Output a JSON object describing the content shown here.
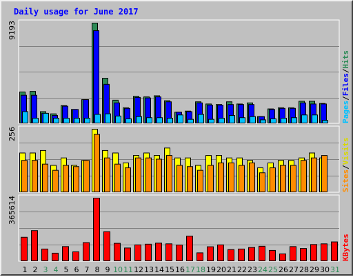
{
  "title": "Daily usage for June 2017",
  "colors": {
    "hits": "#2e8b57",
    "files": "#0000ff",
    "pages": "#00c0ff",
    "visits": "#ffff00",
    "sites": "#ff8c00",
    "kbytes": "#ff0000",
    "title": "#0000ff",
    "weekend_label": "#2e8b57",
    "weekday_label": "#000000",
    "slash": "#000000"
  },
  "chart_data": [
    {
      "type": "bar",
      "panel": "hits-files-pages",
      "max_label": "9193",
      "ylim": [
        0,
        9193
      ],
      "grid": true,
      "side_labels": [
        "Pages",
        "/",
        "Files",
        "/",
        "Hits"
      ],
      "categories": [
        "1",
        "2",
        "3",
        "4",
        "5",
        "6",
        "7",
        "8",
        "9",
        "10",
        "11",
        "12",
        "13",
        "14",
        "15",
        "16",
        "17",
        "18",
        "19",
        "20",
        "21",
        "22",
        "23",
        "24",
        "25",
        "26",
        "27",
        "28",
        "29",
        "30",
        "31"
      ],
      "series": [
        {
          "name": "Hits",
          "values": [
            2900,
            2950,
            1100,
            900,
            1650,
            1300,
            2200,
            9193,
            4150,
            2150,
            1450,
            2500,
            2450,
            2550,
            2100,
            1050,
            1150,
            2000,
            1800,
            1750,
            2000,
            1800,
            1900,
            650,
            1350,
            1450,
            1450,
            2050,
            2050,
            1850,
            0
          ]
        },
        {
          "name": "Files",
          "values": [
            2600,
            2600,
            950,
            750,
            1600,
            1300,
            2200,
            8500,
            3600,
            1900,
            1400,
            2400,
            2350,
            2450,
            2000,
            1050,
            1100,
            1900,
            1700,
            1700,
            1750,
            1750,
            1750,
            650,
            1300,
            1400,
            1400,
            1900,
            1800,
            1800,
            0
          ]
        },
        {
          "name": "Pages",
          "values": [
            1100,
            500,
            950,
            500,
            500,
            500,
            500,
            850,
            900,
            700,
            450,
            650,
            550,
            550,
            500,
            800,
            400,
            850,
            400,
            500,
            750,
            550,
            650,
            350,
            450,
            500,
            550,
            800,
            800,
            300,
            0
          ]
        }
      ]
    },
    {
      "type": "bar",
      "panel": "visits-sites",
      "max_label": "256",
      "ylim": [
        0,
        256
      ],
      "grid": true,
      "side_labels": [
        "Sites",
        "/",
        "Visits"
      ],
      "categories": [
        "1",
        "2",
        "3",
        "4",
        "5",
        "6",
        "7",
        "8",
        "9",
        "10",
        "11",
        "12",
        "13",
        "14",
        "15",
        "16",
        "17",
        "18",
        "19",
        "20",
        "21",
        "22",
        "23",
        "24",
        "25",
        "26",
        "27",
        "28",
        "29",
        "30",
        "31"
      ],
      "series": [
        {
          "name": "Visits",
          "values": [
            160,
            160,
            170,
            110,
            140,
            110,
            130,
            256,
            170,
            160,
            120,
            150,
            160,
            150,
            180,
            140,
            140,
            110,
            150,
            150,
            140,
            140,
            130,
            100,
            120,
            130,
            130,
            140,
            160,
            140,
            0
          ]
        },
        {
          "name": "Sites",
          "values": [
            130,
            130,
            115,
            90,
            110,
            105,
            130,
            235,
            140,
            115,
            100,
            140,
            140,
            135,
            150,
            110,
            105,
            90,
            110,
            120,
            120,
            110,
            120,
            80,
            100,
            110,
            110,
            130,
            140,
            150,
            0
          ]
        }
      ]
    },
    {
      "type": "bar",
      "panel": "kbytes",
      "max_label": "365614",
      "ylim": [
        0,
        365614
      ],
      "grid": true,
      "side_labels": [
        "KBytes"
      ],
      "categories": [
        "1",
        "2",
        "3",
        "4",
        "5",
        "6",
        "7",
        "8",
        "9",
        "10",
        "11",
        "12",
        "13",
        "14",
        "15",
        "16",
        "17",
        "18",
        "19",
        "20",
        "21",
        "22",
        "23",
        "24",
        "25",
        "26",
        "27",
        "28",
        "29",
        "30",
        "31"
      ],
      "series": [
        {
          "name": "KBytes",
          "values": [
            140000,
            178000,
            72000,
            48000,
            86000,
            56000,
            109000,
            365614,
            172000,
            105000,
            78000,
            96000,
            100000,
            106000,
            102000,
            95000,
            146000,
            50000,
            85000,
            96000,
            69000,
            72000,
            81000,
            88000,
            64000,
            44000,
            86000,
            75000,
            98000,
            102000,
            113000
          ]
        }
      ]
    }
  ]
}
